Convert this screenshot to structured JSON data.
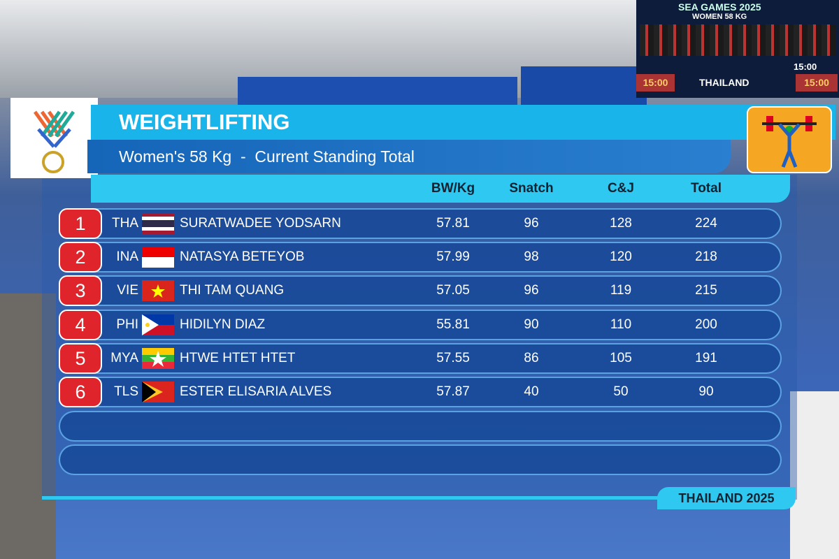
{
  "header": {
    "title": "WEIGHTLIFTING",
    "subtitle": "Women's 58 Kg  -  Current Standing Total"
  },
  "table": {
    "columns": [
      "BW/Kg",
      "Snatch",
      "C&J",
      "Total"
    ],
    "rows": [
      {
        "rank": 1,
        "country": "THA",
        "name": "SURATWADEE YODSARN",
        "bw": 57.81,
        "snatch": 96,
        "cj": 128,
        "total": 224
      },
      {
        "rank": 2,
        "country": "INA",
        "name": "NATASYA BETEYOB",
        "bw": 57.99,
        "snatch": 98,
        "cj": 120,
        "total": 218
      },
      {
        "rank": 3,
        "country": "VIE",
        "name": "THI TAM QUANG",
        "bw": 57.05,
        "snatch": 96,
        "cj": 119,
        "total": 215
      },
      {
        "rank": 4,
        "country": "PHI",
        "name": "HIDILYN DIAZ",
        "bw": 55.81,
        "snatch": 90,
        "cj": 110,
        "total": 200
      },
      {
        "rank": 5,
        "country": "MYA",
        "name": "HTWE HTET HTET",
        "bw": 57.55,
        "snatch": 86,
        "cj": 105,
        "total": 191
      },
      {
        "rank": 6,
        "country": "TLS",
        "name": "ESTER ELISARIA ALVES",
        "bw": 57.87,
        "snatch": 40,
        "cj": 50,
        "total": 90
      }
    ]
  },
  "footer": "THAILAND 2025",
  "scoreboard": {
    "event": "SEA GAMES 2025",
    "category": "WOMEN 58 KG",
    "clock": "15:00",
    "brand": "THAILAND"
  }
}
